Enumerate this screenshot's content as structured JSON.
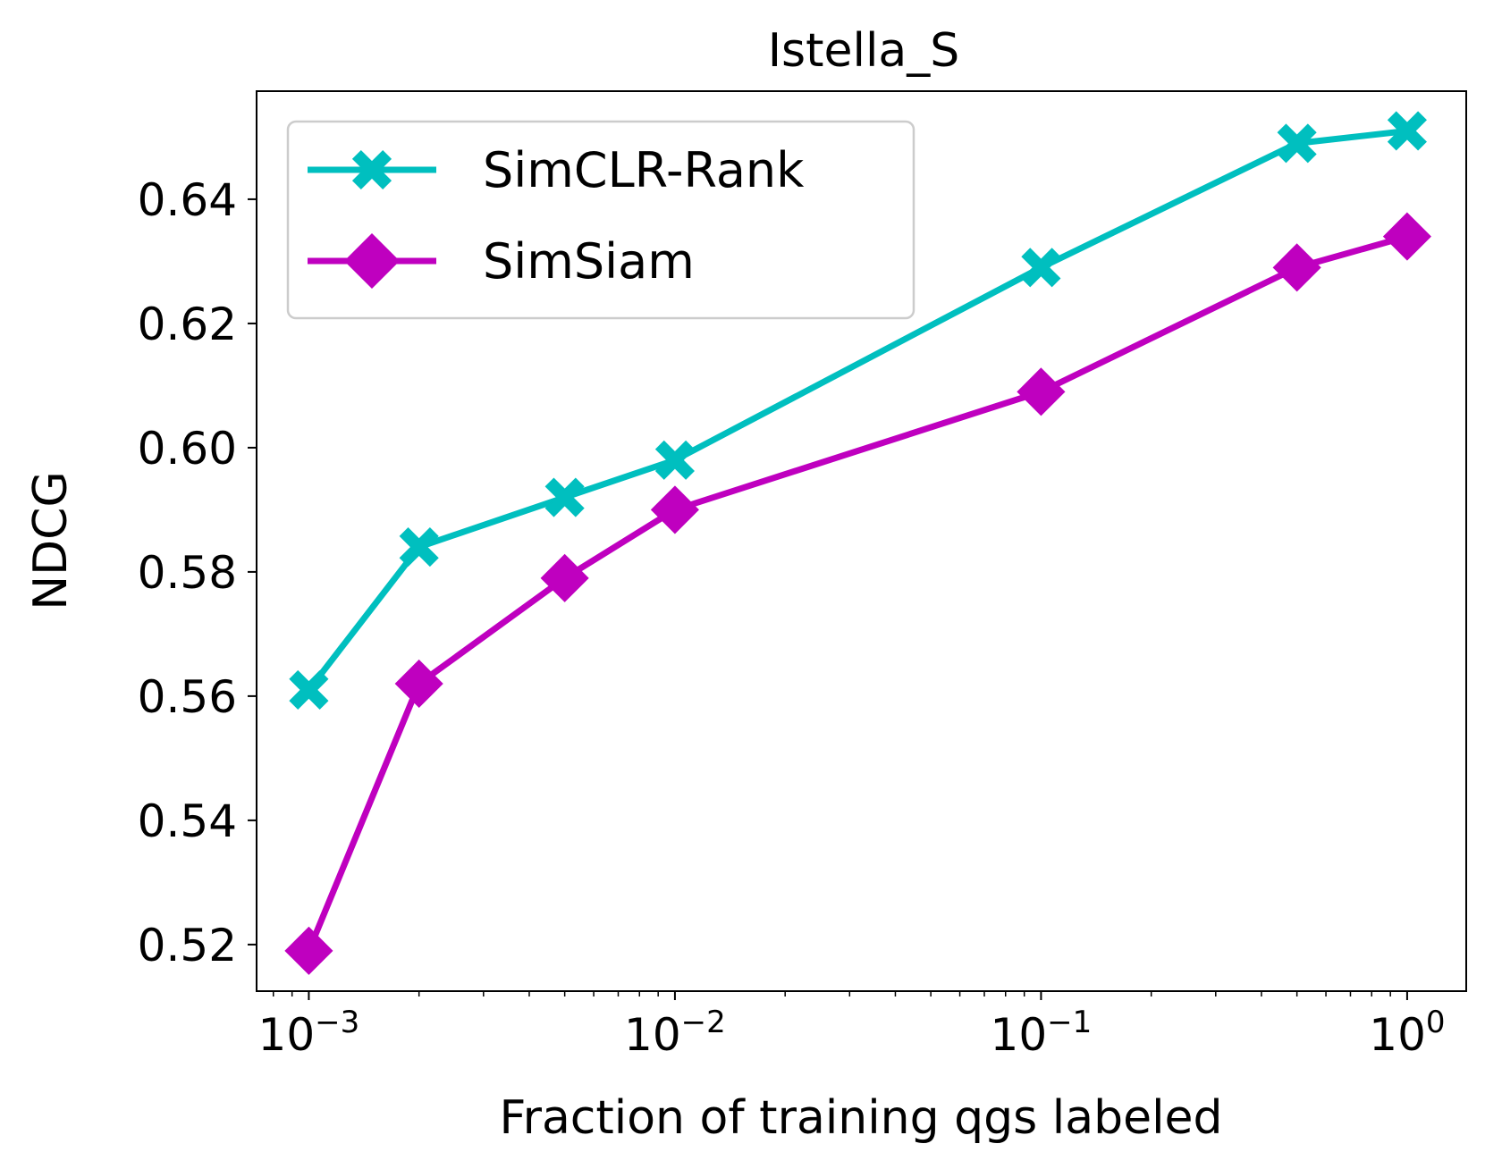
{
  "chart_data": {
    "type": "line",
    "title": "Istella_S",
    "xlabel": "Fraction of training qgs labeled",
    "ylabel": "NDCG",
    "xscale": "log",
    "xlim": [
      0.00072,
      1.45
    ],
    "ylim": [
      0.5125,
      0.6574
    ],
    "x": [
      0.001,
      0.002,
      0.005,
      0.01,
      0.1,
      0.5,
      1.0
    ],
    "series": [
      {
        "name": "SimCLR-Rank",
        "color": "#00bfbf",
        "marker": "X",
        "values": [
          0.561,
          0.584,
          0.592,
          0.598,
          0.629,
          0.649,
          0.651
        ]
      },
      {
        "name": "SimSiam",
        "color": "#bf00bf",
        "marker": "D",
        "values": [
          0.519,
          0.562,
          0.579,
          0.59,
          0.609,
          0.629,
          0.634
        ]
      }
    ],
    "yticks": [
      {
        "value": 0.52,
        "label": "0.52"
      },
      {
        "value": 0.54,
        "label": "0.54"
      },
      {
        "value": 0.56,
        "label": "0.56"
      },
      {
        "value": 0.58,
        "label": "0.58"
      },
      {
        "value": 0.6,
        "label": "0.60"
      },
      {
        "value": 0.62,
        "label": "0.62"
      },
      {
        "value": 0.64,
        "label": "0.64"
      }
    ],
    "xticks": [
      {
        "value": 0.001,
        "base": "10",
        "exp": "−3"
      },
      {
        "value": 0.01,
        "base": "10",
        "exp": "−2"
      },
      {
        "value": 0.1,
        "base": "10",
        "exp": "−1"
      },
      {
        "value": 1,
        "base": "10",
        "exp": "0"
      }
    ],
    "legend_position": "upper-left",
    "grid": false
  }
}
